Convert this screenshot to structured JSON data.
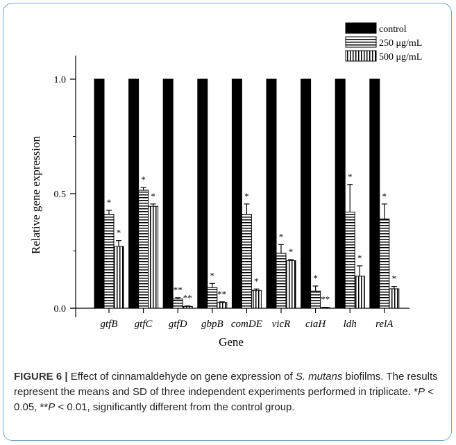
{
  "chart_data": {
    "type": "bar",
    "xlabel": "Gene",
    "ylabel": "Relative gene expression",
    "ylim": [
      0,
      1.1
    ],
    "yticks": [
      "0.0",
      "0.5",
      "1.0"
    ],
    "yticks_values": [
      0,
      0.5,
      1.0
    ],
    "categories": [
      "gtfB",
      "gtfC",
      "gtfD",
      "gbpB",
      "comDE",
      "vicR",
      "ciaH",
      "ldh",
      "relA"
    ],
    "series": [
      {
        "name": "control",
        "pattern": "solid",
        "values": [
          1,
          1,
          1,
          1,
          1,
          1,
          1,
          1,
          1
        ],
        "errors": [
          0,
          0,
          0,
          0,
          0,
          0,
          0,
          0,
          0
        ],
        "sig": [
          "",
          "",
          "",
          "",
          "",
          "",
          "",
          "",
          ""
        ]
      },
      {
        "name": "250 μg/mL",
        "pattern": "horizontal",
        "values": [
          0.41,
          0.515,
          0.04,
          0.09,
          0.41,
          0.24,
          0.075,
          0.42,
          0.39
        ],
        "errors": [
          0.018,
          0.012,
          0.006,
          0.018,
          0.045,
          0.038,
          0.022,
          0.12,
          0.065
        ],
        "sig": [
          "*",
          "*",
          "**",
          "*",
          "*",
          "*",
          "*",
          "*",
          "*"
        ]
      },
      {
        "name": "500 μg/mL",
        "pattern": "vertical",
        "values": [
          0.27,
          0.445,
          0.008,
          0.025,
          0.078,
          0.208,
          0.003,
          0.14,
          0.085
        ],
        "errors": [
          0.025,
          0.01,
          0.002,
          0.003,
          0.006,
          0.004,
          0.001,
          0.045,
          0.01
        ],
        "sig": [
          "*",
          "*",
          "**",
          "**",
          "*",
          "*",
          "**",
          "*",
          "*"
        ]
      }
    ],
    "legend_position": "top-right",
    "colors": {
      "bar_fill": "#000000",
      "pattern_bg": "#ffffff",
      "frame": "#6fa8c4"
    }
  },
  "caption": {
    "label": "FIGURE 6 |",
    "text_1": " Effect of cinnamaldehyde on gene expression of ",
    "species": "S. mutans",
    "text_2": " biofilms. The results represent the means and SD of three independent experiments performed in triplicate. *",
    "p1": "P",
    "text_3": " < 0.05, **",
    "p2": "P",
    "text_4": " < 0.01, significantly different from the control group."
  }
}
